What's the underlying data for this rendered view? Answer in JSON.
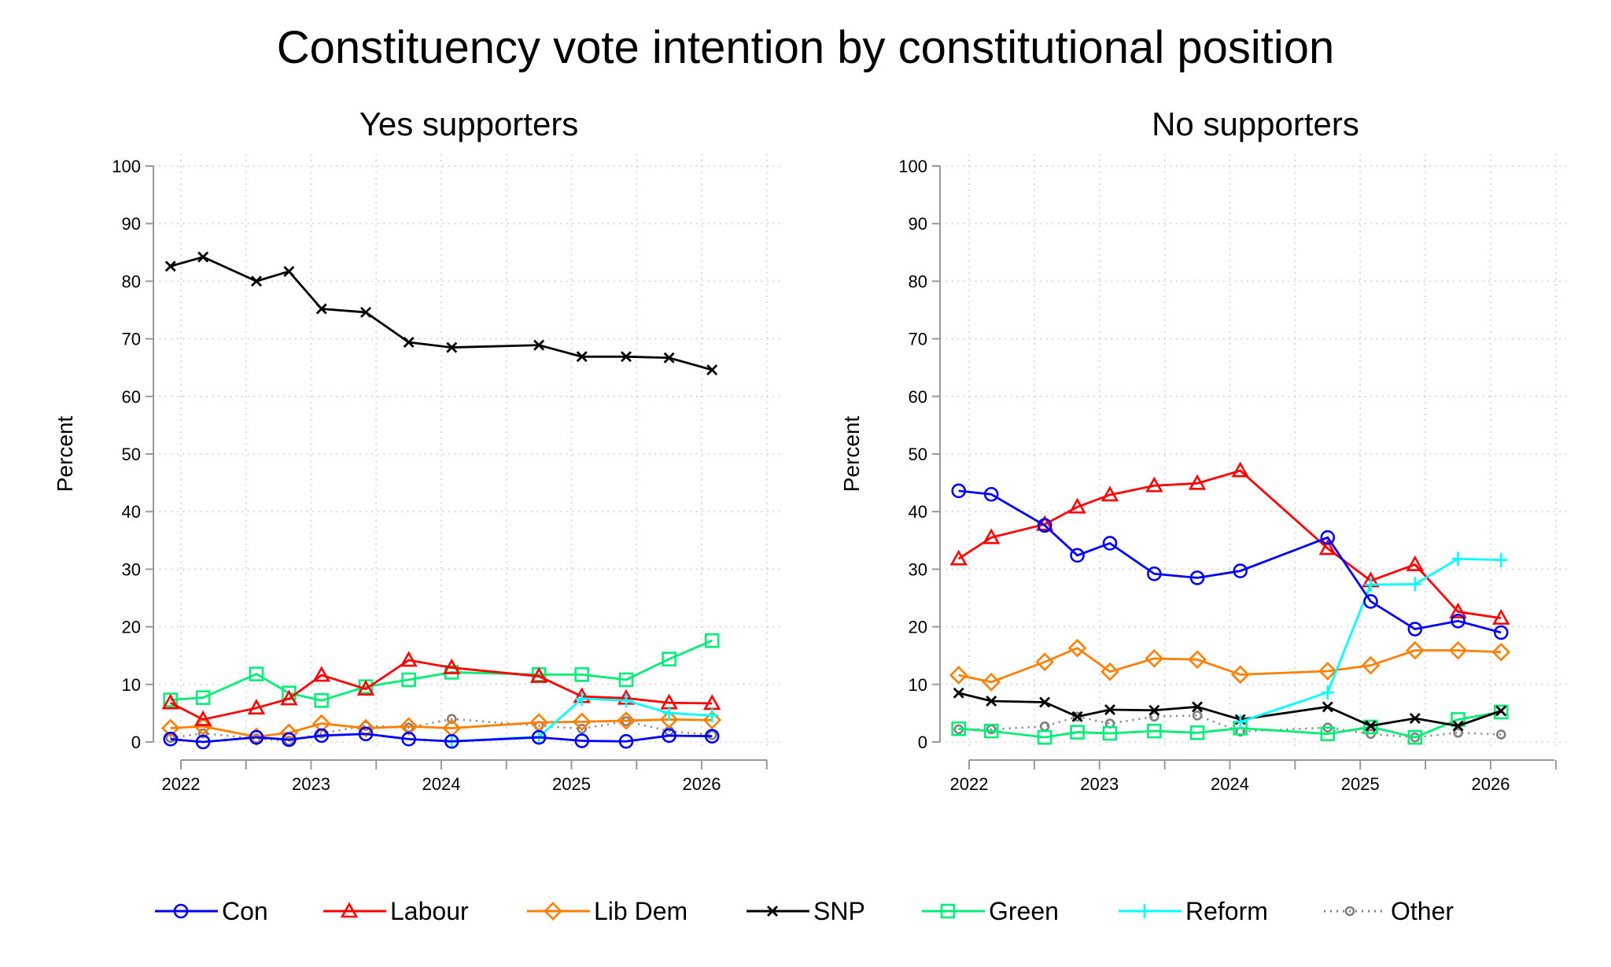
{
  "chart_data": {
    "type": "line",
    "title": "Constituency vote intention by constitutional position",
    "x": [
      2021.92,
      2022.17,
      2022.58,
      2022.83,
      2023.08,
      2023.42,
      2023.75,
      2024.08,
      2024.75,
      2025.08,
      2025.42,
      2025.75,
      2026.08
    ],
    "xticks": [
      "2022",
      "2023",
      "2024",
      "2025",
      "2026"
    ],
    "xlim": [
      2022,
      2026.5
    ],
    "ylim": [
      0,
      100
    ],
    "yticks": [
      "0",
      "10",
      "20",
      "30",
      "40",
      "50",
      "60",
      "70",
      "80",
      "90",
      "100"
    ],
    "grid": true,
    "legend_placement": "bottom",
    "series_style": [
      {
        "name": "Con",
        "color": "#0000ff",
        "marker": "circle"
      },
      {
        "name": "Labour",
        "color": "#ff0000",
        "marker": "triangle"
      },
      {
        "name": "Lib Dem",
        "color": "#ff7f00",
        "marker": "diamond"
      },
      {
        "name": "SNP",
        "color": "#000000",
        "marker": "x"
      },
      {
        "name": "Green",
        "color": "#00ee76",
        "marker": "square"
      },
      {
        "name": "Reform",
        "color": "#00ffff",
        "marker": "plus"
      },
      {
        "name": "Other",
        "color": "#808080",
        "marker": "small-circle",
        "dotted": true
      }
    ],
    "panels": [
      {
        "title": "Yes supporters",
        "ylabel": "Percent",
        "series": [
          {
            "name": "Con",
            "values": [
              0.5,
              0,
              0.8,
              0.4,
              1.1,
              1.4,
              0.5,
              0.1,
              0.8,
              0.2,
              0.1,
              1.1,
              1.0
            ]
          },
          {
            "name": "Labour",
            "values": [
              6.8,
              3.9,
              5.9,
              7.5,
              11.6,
              9.2,
              14.2,
              12.9,
              11.4,
              7.9,
              7.6,
              6.8,
              6.7
            ]
          },
          {
            "name": "Lib Dem",
            "values": [
              2.4,
              2.7,
              0.9,
              1.6,
              3.2,
              2.4,
              2.7,
              2.4,
              3.4,
              3.5,
              3.7,
              3.9,
              3.8
            ]
          },
          {
            "name": "SNP",
            "values": [
              82.6,
              84.2,
              80.0,
              81.7,
              75.2,
              74.6,
              69.4,
              68.5,
              68.9,
              66.9,
              66.9,
              66.7,
              64.6
            ]
          },
          {
            "name": "Green",
            "values": [
              7.3,
              7.7,
              11.8,
              8.5,
              7.2,
              9.6,
              10.8,
              12.1,
              11.7,
              11.7,
              10.8,
              14.4,
              17.6
            ]
          },
          {
            "name": "Reform",
            "values": [
              null,
              null,
              null,
              null,
              null,
              null,
              null,
              0.1,
              0.9,
              7.5,
              7.2,
              5.0,
              4.6
            ]
          },
          {
            "name": "Other",
            "values": [
              0.7,
              1.5,
              0.6,
              0.2,
              1.5,
              2.8,
              2.5,
              4.0,
              2.8,
              2.3,
              3.6,
              1.9,
              1.2
            ]
          }
        ]
      },
      {
        "title": "No supporters",
        "ylabel": "Percent",
        "series": [
          {
            "name": "Con",
            "values": [
              43.6,
              43.0,
              37.6,
              32.4,
              34.5,
              29.2,
              28.5,
              29.7,
              35.5,
              24.4,
              19.6,
              21.0,
              19.0
            ]
          },
          {
            "name": "Labour",
            "values": [
              31.8,
              35.5,
              37.8,
              40.8,
              42.9,
              44.5,
              44.9,
              47.1,
              33.6,
              28.0,
              30.8,
              22.6,
              21.5
            ]
          },
          {
            "name": "Lib Dem",
            "values": [
              11.6,
              10.4,
              13.9,
              16.3,
              12.2,
              14.5,
              14.3,
              11.7,
              12.3,
              13.3,
              15.9,
              15.9,
              15.6
            ]
          },
          {
            "name": "SNP",
            "values": [
              8.5,
              7.1,
              6.9,
              4.4,
              5.6,
              5.5,
              6.1,
              3.9,
              6.1,
              2.8,
              4.1,
              2.8,
              5.4
            ]
          },
          {
            "name": "Green",
            "values": [
              2.3,
              1.9,
              0.8,
              1.7,
              1.5,
              1.9,
              1.6,
              2.4,
              1.4,
              2.6,
              0.8,
              3.9,
              5.2
            ]
          },
          {
            "name": "Reform",
            "values": [
              null,
              null,
              null,
              null,
              null,
              null,
              null,
              3.5,
              8.6,
              27.3,
              27.4,
              31.8,
              31.6
            ]
          },
          {
            "name": "Other",
            "values": [
              2.2,
              2.2,
              2.7,
              4.4,
              3.2,
              4.4,
              4.6,
              1.8,
              2.5,
              1.4,
              0.8,
              1.6,
              1.3
            ]
          }
        ]
      }
    ]
  }
}
